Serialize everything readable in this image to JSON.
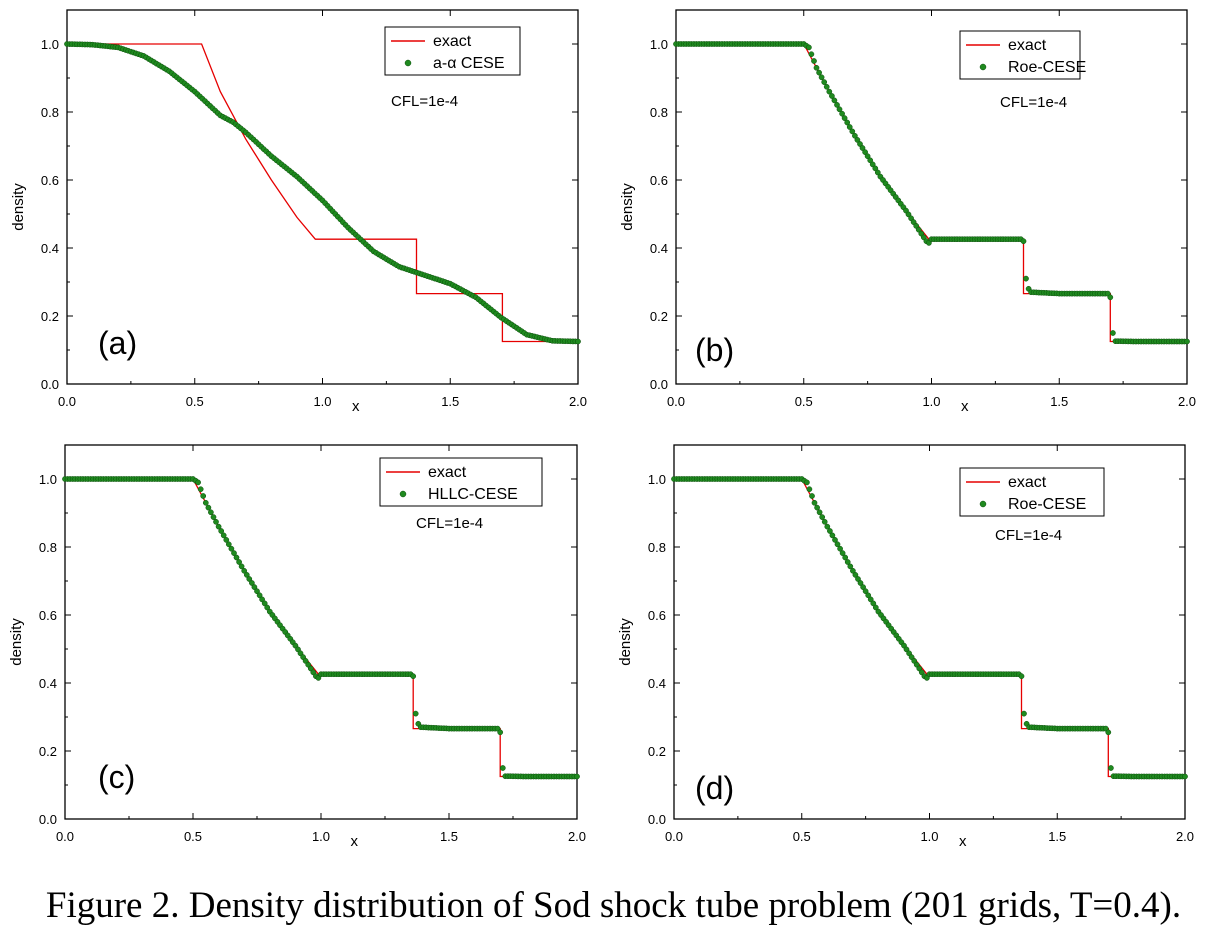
{
  "caption": "Figure 2. Density distribution of Sod shock tube problem (201 grids, T=0.4).",
  "colors": {
    "exact": "#e60000",
    "numerical": "#1f8a1f",
    "numerical_edge": "#0b4d0b",
    "axis": "#000000"
  },
  "chart_data": [
    {
      "panel_label": "(a)",
      "type": "line+scatter",
      "xlabel": "x",
      "ylabel": "density",
      "xlim": [
        0,
        2
      ],
      "ylim": [
        0,
        1.1
      ],
      "xticks": [
        "0.0",
        "0.5",
        "1.0",
        "1.5",
        "2.0"
      ],
      "yticks": [
        "0.0",
        "0.2",
        "0.4",
        "0.6",
        "0.8",
        "1.0"
      ],
      "annotation": "CFL=1e-4",
      "legend": {
        "entries": [
          "exact",
          "a-α CESE"
        ],
        "position": "top-right"
      },
      "series": [
        {
          "name": "exact",
          "style": "line",
          "x": [
            0,
            0.527,
            0.6,
            0.7,
            0.8,
            0.9,
            0.972,
            1.368,
            1.368,
            1.704,
            1.704,
            2.0
          ],
          "y": [
            1.0,
            1.0,
            0.86,
            0.72,
            0.6,
            0.49,
            0.426,
            0.426,
            0.266,
            0.266,
            0.125,
            0.125
          ]
        },
        {
          "name": "a-α CESE",
          "style": "markers",
          "x": [
            0,
            0.1,
            0.2,
            0.3,
            0.4,
            0.5,
            0.6,
            0.65,
            0.7,
            0.8,
            0.9,
            1.0,
            1.1,
            1.2,
            1.3,
            1.4,
            1.5,
            1.6,
            1.7,
            1.8,
            1.9,
            2.0
          ],
          "y": [
            1.0,
            0.998,
            0.99,
            0.965,
            0.92,
            0.86,
            0.79,
            0.77,
            0.74,
            0.67,
            0.61,
            0.54,
            0.46,
            0.39,
            0.345,
            0.32,
            0.295,
            0.255,
            0.195,
            0.145,
            0.127,
            0.125
          ]
        }
      ]
    },
    {
      "panel_label": "(b)",
      "type": "line+scatter",
      "xlabel": "x",
      "ylabel": "density",
      "xlim": [
        0,
        2
      ],
      "ylim": [
        0,
        1.1
      ],
      "xticks": [
        "0.0",
        "0.5",
        "1.0",
        "1.5",
        "2.0"
      ],
      "yticks": [
        "0.0",
        "0.2",
        "0.4",
        "0.6",
        "0.8",
        "1.0"
      ],
      "annotation": "CFL=1e-4",
      "legend": {
        "entries": [
          "exact",
          "Roe-CESE"
        ],
        "position": "top-right"
      },
      "series": [
        {
          "name": "exact",
          "style": "line",
          "x": [
            0,
            0.5,
            0.55,
            0.6,
            0.7,
            0.8,
            0.9,
            0.99,
            1.36,
            1.36,
            1.7,
            1.7,
            2.0
          ],
          "y": [
            1.0,
            1.0,
            0.93,
            0.86,
            0.73,
            0.61,
            0.51,
            0.426,
            0.426,
            0.266,
            0.266,
            0.125,
            0.125
          ]
        },
        {
          "name": "Roe-CESE",
          "style": "markers",
          "x": [
            0,
            0.1,
            0.2,
            0.3,
            0.4,
            0.5,
            0.52,
            0.55,
            0.6,
            0.7,
            0.8,
            0.9,
            0.98,
            0.99,
            1.0,
            1.1,
            1.2,
            1.3,
            1.35,
            1.36,
            1.365,
            1.37,
            1.38,
            1.39,
            1.5,
            1.6,
            1.69,
            1.7,
            1.71,
            1.72,
            1.8,
            1.9,
            2.0
          ],
          "y": [
            1.0,
            1.0,
            1.0,
            1.0,
            1.0,
            1.0,
            0.99,
            0.93,
            0.86,
            0.73,
            0.61,
            0.51,
            0.42,
            0.415,
            0.426,
            0.426,
            0.426,
            0.426,
            0.426,
            0.42,
            0.37,
            0.31,
            0.28,
            0.27,
            0.266,
            0.266,
            0.266,
            0.255,
            0.15,
            0.126,
            0.125,
            0.125,
            0.125
          ]
        }
      ]
    },
    {
      "panel_label": "(c)",
      "type": "line+scatter",
      "xlabel": "x",
      "ylabel": "density",
      "xlim": [
        0,
        2
      ],
      "ylim": [
        0,
        1.1
      ],
      "xticks": [
        "0.0",
        "0.5",
        "1.0",
        "1.5",
        "2.0"
      ],
      "yticks": [
        "0.0",
        "0.2",
        "0.4",
        "0.6",
        "0.8",
        "1.0"
      ],
      "annotation": "CFL=1e-4",
      "legend": {
        "entries": [
          "exact",
          "HLLC-CESE"
        ],
        "position": "top-right"
      },
      "series": [
        {
          "name": "exact",
          "style": "line",
          "x": [
            0,
            0.5,
            0.55,
            0.6,
            0.7,
            0.8,
            0.9,
            0.99,
            1.36,
            1.36,
            1.7,
            1.7,
            2.0
          ],
          "y": [
            1.0,
            1.0,
            0.93,
            0.86,
            0.73,
            0.61,
            0.51,
            0.426,
            0.426,
            0.266,
            0.266,
            0.125,
            0.125
          ]
        },
        {
          "name": "HLLC-CESE",
          "style": "markers",
          "x": [
            0,
            0.1,
            0.2,
            0.3,
            0.4,
            0.5,
            0.52,
            0.55,
            0.6,
            0.7,
            0.8,
            0.9,
            0.98,
            0.99,
            1.0,
            1.1,
            1.2,
            1.3,
            1.35,
            1.36,
            1.365,
            1.37,
            1.38,
            1.39,
            1.5,
            1.6,
            1.69,
            1.7,
            1.71,
            1.72,
            1.8,
            1.9,
            2.0
          ],
          "y": [
            1.0,
            1.0,
            1.0,
            1.0,
            1.0,
            1.0,
            0.99,
            0.93,
            0.86,
            0.73,
            0.61,
            0.51,
            0.42,
            0.415,
            0.426,
            0.426,
            0.426,
            0.426,
            0.426,
            0.42,
            0.37,
            0.31,
            0.28,
            0.27,
            0.266,
            0.266,
            0.266,
            0.255,
            0.15,
            0.126,
            0.125,
            0.125,
            0.125
          ]
        }
      ]
    },
    {
      "panel_label": "(d)",
      "type": "line+scatter",
      "xlabel": "x",
      "ylabel": "density",
      "xlim": [
        0,
        2
      ],
      "ylim": [
        0,
        1.1
      ],
      "xticks": [
        "0.0",
        "0.5",
        "1.0",
        "1.5",
        "2.0"
      ],
      "yticks": [
        "0.0",
        "0.2",
        "0.4",
        "0.6",
        "0.8",
        "1.0"
      ],
      "annotation": "CFL=1e-4",
      "legend": {
        "entries": [
          "exact",
          "Roe-CESE"
        ],
        "position": "top-right"
      },
      "series": [
        {
          "name": "exact",
          "style": "line",
          "x": [
            0,
            0.5,
            0.55,
            0.6,
            0.7,
            0.8,
            0.9,
            0.99,
            1.36,
            1.36,
            1.7,
            1.7,
            2.0
          ],
          "y": [
            1.0,
            1.0,
            0.93,
            0.86,
            0.73,
            0.61,
            0.51,
            0.426,
            0.426,
            0.266,
            0.266,
            0.125,
            0.125
          ]
        },
        {
          "name": "Roe-CESE",
          "style": "markers",
          "x": [
            0,
            0.1,
            0.2,
            0.3,
            0.4,
            0.5,
            0.52,
            0.55,
            0.6,
            0.7,
            0.8,
            0.9,
            0.98,
            0.99,
            1.0,
            1.1,
            1.2,
            1.3,
            1.35,
            1.36,
            1.365,
            1.37,
            1.38,
            1.39,
            1.5,
            1.6,
            1.69,
            1.7,
            1.71,
            1.72,
            1.8,
            1.9,
            2.0
          ],
          "y": [
            1.0,
            1.0,
            1.0,
            1.0,
            1.0,
            1.0,
            0.99,
            0.93,
            0.86,
            0.73,
            0.61,
            0.51,
            0.42,
            0.415,
            0.426,
            0.426,
            0.426,
            0.426,
            0.426,
            0.42,
            0.37,
            0.31,
            0.28,
            0.27,
            0.266,
            0.266,
            0.266,
            0.255,
            0.15,
            0.126,
            0.125,
            0.125,
            0.125
          ]
        }
      ]
    }
  ]
}
